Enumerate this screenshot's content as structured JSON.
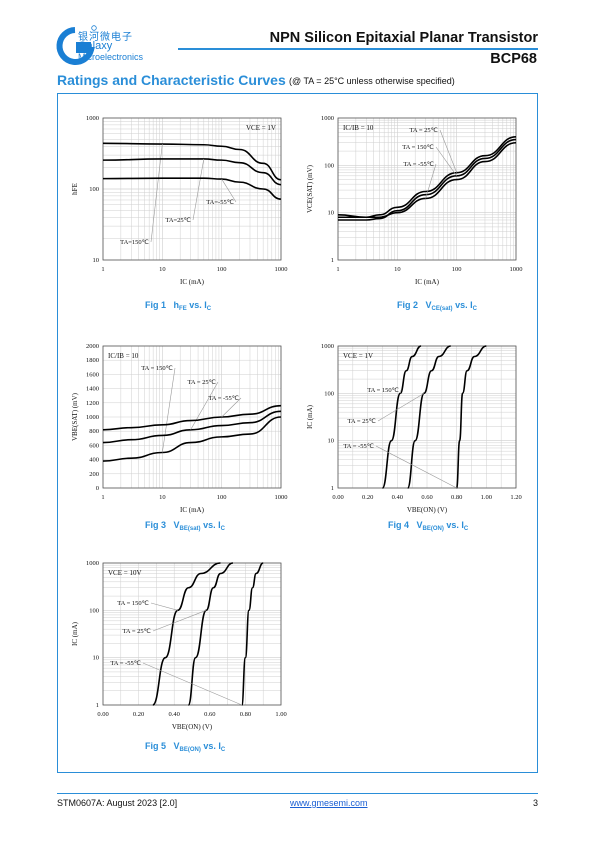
{
  "header": {
    "logo_cn": "银河微电子",
    "logo_en_1": "Galaxy",
    "logo_en_2": "Microelectronics",
    "title": "NPN Silicon Epitaxial Planar Transistor",
    "part_number": "BCP68"
  },
  "section": {
    "title": "Ratings and Characteristic Curves",
    "note": "(@ TA = 25°C unless otherwise specified)"
  },
  "figures": [
    {
      "id": "fig1",
      "caption": "Fig 1",
      "caption_rest": "h",
      "caption_sub": "FE",
      "caption_tail": " vs. I",
      "caption_sub2": "C"
    },
    {
      "id": "fig2",
      "caption": "Fig 2",
      "caption_rest": "V",
      "caption_sub": "CE(sat)",
      "caption_tail": " vs. I",
      "caption_sub2": "C"
    },
    {
      "id": "fig3",
      "caption": "Fig 3",
      "caption_rest": "V",
      "caption_sub": "BE(sat)",
      "caption_tail": " vs. I",
      "caption_sub2": "C"
    },
    {
      "id": "fig4",
      "caption": "Fig 4",
      "caption_rest": "V",
      "caption_sub": "BE(ON)",
      "caption_tail": " vs. I",
      "caption_sub2": "C"
    },
    {
      "id": "fig5",
      "caption": "Fig 5",
      "caption_rest": "V",
      "caption_sub": "BE(ON)",
      "caption_tail": " vs. I",
      "caption_sub2": "C"
    }
  ],
  "chart_data": [
    {
      "type": "line",
      "id": "fig1",
      "xlabel": "IC (mA)",
      "ylabel": "hFE",
      "xscale": "log",
      "yscale": "log",
      "xlim": [
        1,
        1000
      ],
      "ylim": [
        10,
        1000
      ],
      "xticks": [
        "1",
        "10",
        "100",
        "1000"
      ],
      "yticks": [
        "10",
        "100",
        "1000"
      ],
      "annotation": "VCE = 1V",
      "series": [
        {
          "name": "TA=150℃",
          "x": [
            1,
            10,
            50,
            100,
            200,
            500,
            1000
          ],
          "y": [
            440,
            430,
            420,
            400,
            360,
            230,
            135
          ]
        },
        {
          "name": "TA=25℃",
          "x": [
            1,
            10,
            50,
            100,
            200,
            500,
            1000
          ],
          "y": [
            255,
            265,
            265,
            255,
            235,
            170,
            115
          ]
        },
        {
          "name": "TA=-55℃",
          "x": [
            1,
            10,
            50,
            100,
            200,
            500,
            1000
          ],
          "y": [
            140,
            142,
            142,
            138,
            125,
            100,
            72
          ]
        }
      ]
    },
    {
      "type": "line",
      "id": "fig2",
      "xlabel": "IC (mA)",
      "ylabel": "VCE(SAT) (mV)",
      "xscale": "log",
      "yscale": "log",
      "xlim": [
        1,
        1000
      ],
      "ylim": [
        1,
        1000
      ],
      "xticks": [
        "1",
        "10",
        "100",
        "1000"
      ],
      "yticks": [
        "1",
        "10",
        "100",
        "1000"
      ],
      "annotation": "IC/IB = 10",
      "series": [
        {
          "name": "TA = 25℃",
          "x": [
            1,
            3,
            5,
            10,
            30,
            100,
            300,
            1000
          ],
          "y": [
            8,
            8,
            9,
            13,
            28,
            70,
            160,
            400
          ]
        },
        {
          "name": "TA = 150℃",
          "x": [
            1,
            3,
            5,
            10,
            30,
            100,
            300,
            1000
          ],
          "y": [
            7,
            7,
            7.5,
            11,
            24,
            60,
            140,
            350
          ]
        },
        {
          "name": "TA = -55℃",
          "x": [
            1,
            3,
            5,
            10,
            30,
            100,
            300,
            1000
          ],
          "y": [
            9,
            8,
            8,
            10,
            20,
            50,
            120,
            300
          ]
        }
      ]
    },
    {
      "type": "line",
      "id": "fig3",
      "xlabel": "IC (mA)",
      "ylabel": "VBE(SAT) (mV)",
      "xscale": "log",
      "yscale": "linear",
      "xlim": [
        1,
        1000
      ],
      "ylim": [
        0,
        2000
      ],
      "xticks": [
        "1",
        "10",
        "100",
        "1000"
      ],
      "yticks": [
        "0",
        "200",
        "400",
        "600",
        "800",
        "1000",
        "1200",
        "1400",
        "1600",
        "1800",
        "2000"
      ],
      "annotation": "IC/IB = 10",
      "series": [
        {
          "name": "TA = 150℃",
          "x": [
            1,
            3,
            10,
            30,
            100,
            300,
            1000
          ],
          "y": [
            380,
            420,
            500,
            640,
            720,
            760,
            1000
          ]
        },
        {
          "name": "TA = 25℃",
          "x": [
            1,
            3,
            10,
            30,
            100,
            300,
            1000
          ],
          "y": [
            640,
            680,
            740,
            820,
            880,
            920,
            1080
          ]
        },
        {
          "name": "TA = -55℃",
          "x": [
            1,
            3,
            10,
            30,
            100,
            300,
            1000
          ],
          "y": [
            820,
            850,
            890,
            950,
            1000,
            1040,
            1160
          ]
        }
      ]
    },
    {
      "type": "line",
      "id": "fig4",
      "xlabel": "VBE(ON) (V)",
      "ylabel": "IC (mA)",
      "xscale": "linear",
      "yscale": "log",
      "xlim": [
        0,
        1.2
      ],
      "ylim": [
        1,
        1000
      ],
      "xticks": [
        "0.00",
        "0.20",
        "0.40",
        "0.60",
        "0.80",
        "1.00",
        "1.20"
      ],
      "yticks": [
        "1",
        "10",
        "100",
        "1000"
      ],
      "annotation": "VCE = 1V",
      "series": [
        {
          "name": "TA = 150℃",
          "x": [
            0.3,
            0.36,
            0.42,
            0.46,
            0.5,
            0.56
          ],
          "y": [
            1,
            10,
            100,
            300,
            600,
            1000
          ]
        },
        {
          "name": "TA = 25℃",
          "x": [
            0.47,
            0.52,
            0.58,
            0.63,
            0.68,
            0.76
          ],
          "y": [
            1,
            10,
            100,
            300,
            600,
            1000
          ]
        },
        {
          "name": "TA = -55℃",
          "x": [
            0.8,
            0.82,
            0.84,
            0.87,
            0.92,
            1.0
          ],
          "y": [
            1,
            10,
            100,
            300,
            600,
            1000
          ]
        }
      ]
    },
    {
      "type": "line",
      "id": "fig5",
      "xlabel": "VBE(ON) (V)",
      "ylabel": "IC (mA)",
      "xscale": "linear",
      "yscale": "log",
      "xlim": [
        0,
        1
      ],
      "ylim": [
        1,
        1000
      ],
      "xticks": [
        "0.00",
        "0.20",
        "0.40",
        "0.60",
        "0.80",
        "1.00"
      ],
      "yticks": [
        "1",
        "10",
        "100",
        "1000"
      ],
      "annotation": "VCE = 10V",
      "series": [
        {
          "name": "TA = 150℃",
          "x": [
            0.28,
            0.35,
            0.42,
            0.48,
            0.55,
            0.66
          ],
          "y": [
            1,
            10,
            100,
            300,
            600,
            1000
          ]
        },
        {
          "name": "TA = 25℃",
          "x": [
            0.48,
            0.52,
            0.58,
            0.62,
            0.66,
            0.73
          ],
          "y": [
            1,
            10,
            100,
            300,
            600,
            1000
          ]
        },
        {
          "name": "TA = -55℃",
          "x": [
            0.78,
            0.8,
            0.82,
            0.84,
            0.86,
            0.9
          ],
          "y": [
            1,
            10,
            100,
            300,
            600,
            1000
          ]
        }
      ]
    }
  ],
  "footer": {
    "left": "STM0607A: August 2023 [2.0]",
    "center": "www.gmesemi.com",
    "right": "3"
  }
}
